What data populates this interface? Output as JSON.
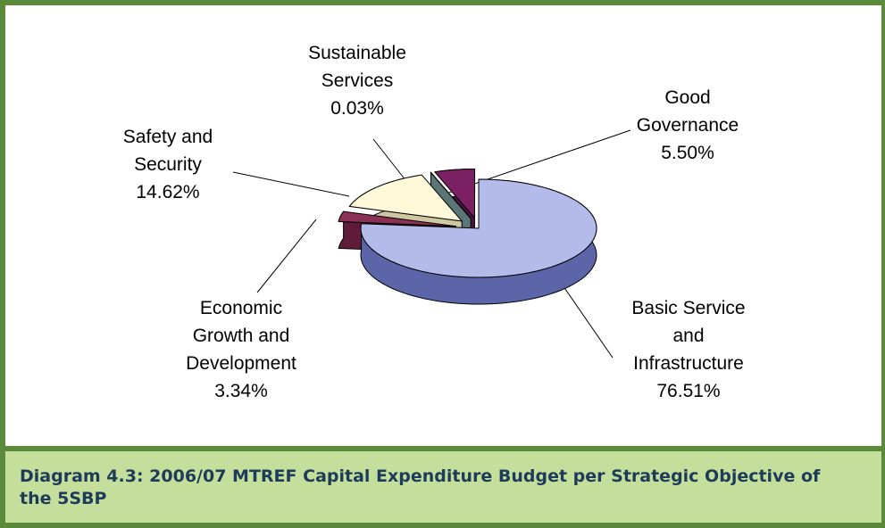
{
  "chart_data": {
    "type": "pie",
    "title": "Diagram 4.3:  2006/07 MTREF Capital Expenditure Budget per Strategic Objective of the 5SBP",
    "categories": [
      "Basic Service and Infrastructure",
      "Economic Growth and Development",
      "Safety and Security",
      "Sustainable Services",
      "Good Governance"
    ],
    "values": [
      76.51,
      3.34,
      14.62,
      0.03,
      5.5
    ],
    "value_labels": [
      "76.51%",
      "3.34%",
      "14.62%",
      "0.03%",
      "5.50%"
    ],
    "colors": [
      "#b3bbea",
      "#8b3156",
      "#fff9d9",
      "#8fabab",
      "#7b2163"
    ],
    "side_colors": [
      "#5b65a8",
      "#5e1c38",
      "#cfc7a0",
      "#5b7676",
      "#4e1240"
    ]
  }
}
